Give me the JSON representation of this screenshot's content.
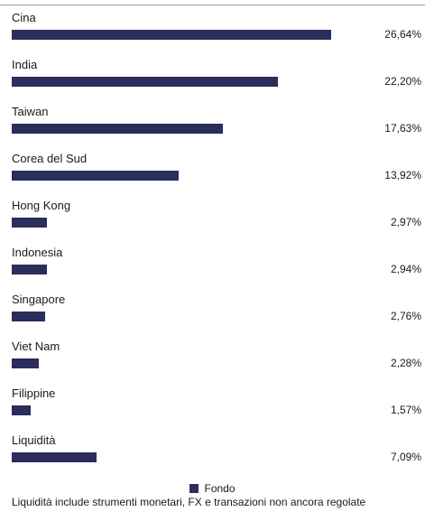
{
  "chart_data": {
    "type": "bar",
    "orientation": "horizontal",
    "categories": [
      "Cina",
      "India",
      "Taiwan",
      "Corea del Sud",
      "Hong Kong",
      "Indonesia",
      "Singapore",
      "Viet Nam",
      "Filippine",
      "Liquidità"
    ],
    "series": [
      {
        "name": "Fondo",
        "values": [
          26.64,
          22.2,
          17.63,
          13.92,
          2.97,
          2.94,
          2.76,
          2.28,
          1.57,
          7.09
        ]
      }
    ],
    "value_labels": [
      "26,64%",
      "22,20%",
      "17,63%",
      "13,92%",
      "2,97%",
      "2,94%",
      "2,76%",
      "2,28%",
      "1,57%",
      "7,09%"
    ],
    "xlim": [
      0,
      30
    ],
    "grid": false,
    "legend_position": "bottom",
    "colors": {
      "Fondo": "#2b2d5c"
    }
  },
  "legend": {
    "label": "Fondo"
  },
  "footnote": "Liquidità include strumenti monetari, FX e transazioni non ancora regolate"
}
